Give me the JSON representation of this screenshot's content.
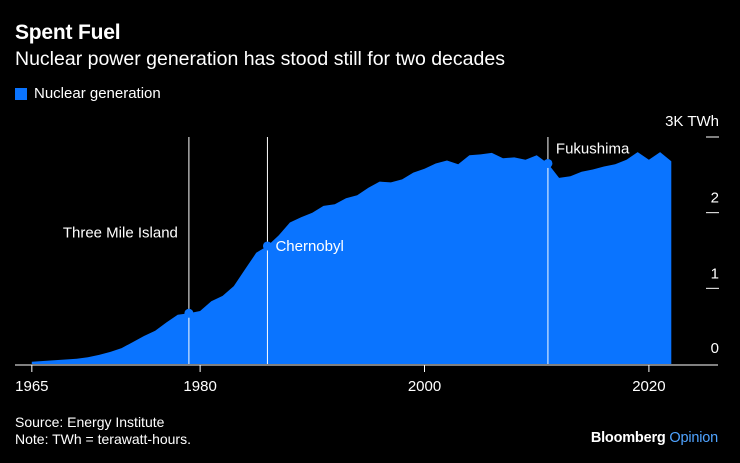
{
  "header": {
    "title": "Spent Fuel",
    "subtitle": "Nuclear power generation has stood still for two decades"
  },
  "legend": {
    "label": "Nuclear generation",
    "color": "#0a74ff"
  },
  "footer": {
    "source": "Source: Energy Institute",
    "note": "Note: TWh = terawatt-hours."
  },
  "brand": {
    "name": "Bloomberg",
    "suffix": "Opinion",
    "suffix_color": "#4fa3ff"
  },
  "chart_data": {
    "type": "area",
    "title": "Spent Fuel",
    "xlim": [
      1963.5,
      2025
    ],
    "ylim": [
      0,
      3
    ],
    "x_ticks": [
      1965,
      1980,
      2000,
      2020
    ],
    "y_ticks": [
      {
        "value": 0,
        "label": "0"
      },
      {
        "value": 1,
        "label": "1"
      },
      {
        "value": 2,
        "label": "2"
      },
      {
        "value": 3,
        "label": "3K TWh"
      }
    ],
    "series": [
      {
        "name": "Nuclear generation",
        "color": "#0a74ff",
        "x": [
          1965,
          1966,
          1967,
          1968,
          1969,
          1970,
          1971,
          1972,
          1973,
          1974,
          1975,
          1976,
          1977,
          1978,
          1979,
          1980,
          1981,
          1982,
          1983,
          1984,
          1985,
          1986,
          1987,
          1988,
          1989,
          1990,
          1991,
          1992,
          1993,
          1994,
          1995,
          1996,
          1997,
          1998,
          1999,
          2000,
          2001,
          2002,
          2003,
          2004,
          2005,
          2006,
          2007,
          2008,
          2009,
          2010,
          2011,
          2012,
          2013,
          2014,
          2015,
          2016,
          2017,
          2018,
          2019,
          2020,
          2021,
          2022
        ],
        "values": [
          0.03,
          0.04,
          0.05,
          0.06,
          0.07,
          0.09,
          0.12,
          0.16,
          0.21,
          0.29,
          0.37,
          0.44,
          0.55,
          0.65,
          0.67,
          0.7,
          0.83,
          0.9,
          1.03,
          1.25,
          1.47,
          1.56,
          1.7,
          1.87,
          1.94,
          2.0,
          2.09,
          2.11,
          2.19,
          2.23,
          2.33,
          2.41,
          2.4,
          2.44,
          2.53,
          2.58,
          2.65,
          2.69,
          2.64,
          2.76,
          2.77,
          2.79,
          2.72,
          2.73,
          2.7,
          2.76,
          2.65,
          2.46,
          2.48,
          2.54,
          2.57,
          2.61,
          2.64,
          2.7,
          2.8,
          2.7,
          2.8,
          2.68
        ]
      }
    ],
    "annotations": [
      {
        "label": "Three Mile Island",
        "x": 1979,
        "y": 0.67
      },
      {
        "label": "Chernobyl",
        "x": 1986,
        "y": 1.56
      },
      {
        "label": "Fukushima",
        "x": 2011,
        "y": 2.65
      }
    ]
  }
}
